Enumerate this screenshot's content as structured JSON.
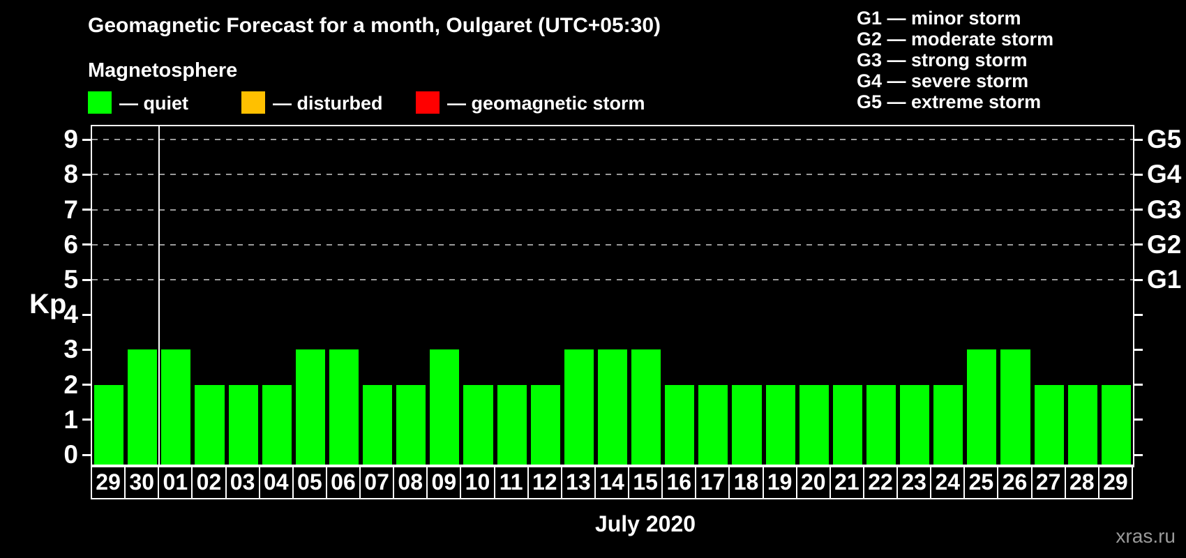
{
  "title": "Geomagnetic Forecast for a month, Oulgaret (UTC+05:30)",
  "legend": {
    "heading": "Magnetosphere",
    "items": [
      {
        "name": "quiet",
        "label": "— quiet",
        "color": "#00ff00"
      },
      {
        "name": "disturbed",
        "label": "— disturbed",
        "color": "#ffc000"
      },
      {
        "name": "geomagnetic-storm",
        "label": "— geomagnetic storm",
        "color": "#ff0000"
      }
    ]
  },
  "storm_scale": [
    "G1 — minor storm",
    "G2 — moderate storm",
    "G3 — strong storm",
    "G4 — severe storm",
    "G5 — extreme storm"
  ],
  "watermark": "xras.ru",
  "chart_data": {
    "type": "bar",
    "title": "Geomagnetic Forecast for a month, Oulgaret (UTC+05:30)",
    "xlabel": "July 2020",
    "ylabel": "Kp",
    "ylim": [
      0,
      9
    ],
    "yticks": [
      0,
      1,
      2,
      3,
      4,
      5,
      6,
      7,
      8,
      9
    ],
    "grid": true,
    "gridlines_at_kp": [
      5,
      6,
      7,
      8,
      9
    ],
    "legend_position": "top",
    "categories": [
      "29",
      "30",
      "01",
      "02",
      "03",
      "04",
      "05",
      "06",
      "07",
      "08",
      "09",
      "10",
      "11",
      "12",
      "13",
      "14",
      "15",
      "16",
      "17",
      "18",
      "19",
      "20",
      "21",
      "22",
      "23",
      "24",
      "25",
      "26",
      "27",
      "28",
      "29"
    ],
    "values": [
      2,
      3,
      3,
      2,
      2,
      2,
      3,
      3,
      2,
      2,
      3,
      2,
      2,
      2,
      3,
      3,
      3,
      2,
      2,
      2,
      2,
      2,
      2,
      2,
      2,
      2,
      3,
      3,
      2,
      2,
      2
    ],
    "bar_color": "#00ff00",
    "right_axis": [
      {
        "kp": 5,
        "label": "G1"
      },
      {
        "kp": 6,
        "label": "G2"
      },
      {
        "kp": 7,
        "label": "G3"
      },
      {
        "kp": 8,
        "label": "G4"
      },
      {
        "kp": 9,
        "label": "G5"
      }
    ],
    "month_separator_after_index": 1
  }
}
